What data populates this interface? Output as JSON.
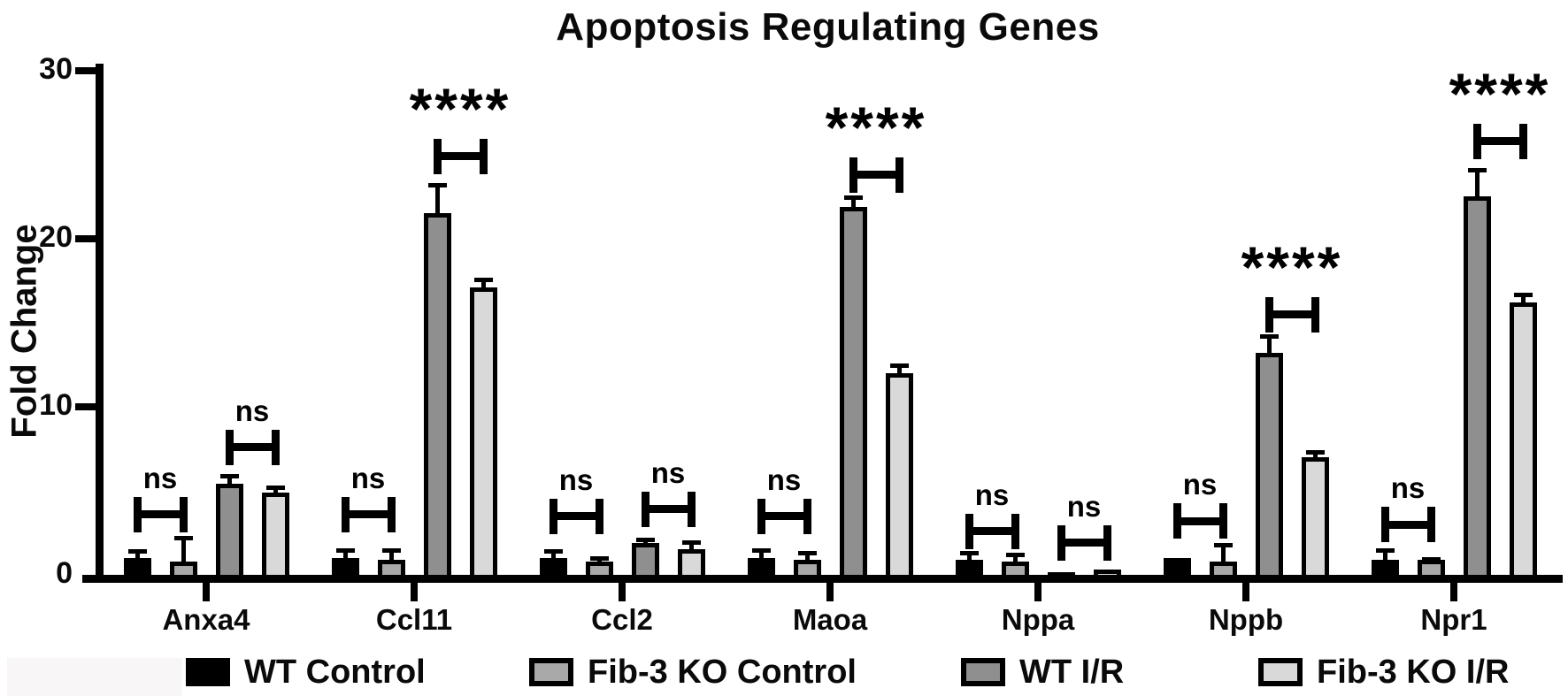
{
  "page": {
    "background": "#ffffff"
  },
  "chart_data": {
    "type": "bar",
    "title": "Apoptosis Regulating Genes",
    "ylabel": "Fold Change",
    "xlabel": "",
    "ylim": [
      0,
      30
    ],
    "yticks": [
      0,
      10,
      20,
      30
    ],
    "grid": false,
    "legend_position": "bottom",
    "bar_outline_color": "#000000",
    "categories": [
      "Anxa4",
      "Ccl11",
      "Ccl2",
      "Maoa",
      "Nppa",
      "Nppb",
      "Npr1"
    ],
    "series": [
      {
        "name": "WT Control",
        "color": "#000000",
        "values": [
          1.0,
          1.0,
          1.0,
          1.0,
          0.9,
          1.0,
          0.9
        ],
        "errors": [
          0.5,
          0.6,
          0.5,
          0.6,
          0.5,
          0.0,
          0.7
        ]
      },
      {
        "name": "Fib-3 KO Control",
        "color": "#a9a9a9",
        "values": [
          0.8,
          0.9,
          0.8,
          0.9,
          0.8,
          0.8,
          0.9
        ],
        "errors": [
          1.5,
          0.7,
          0.3,
          0.5,
          0.5,
          1.1,
          0.15
        ]
      },
      {
        "name": "WT I/R",
        "color": "#8f8f8f",
        "values": [
          5.4,
          21.5,
          1.9,
          21.9,
          0.15,
          13.2,
          22.5
        ],
        "errors": [
          0.6,
          1.8,
          0.3,
          0.7,
          0.0,
          1.1,
          1.7
        ]
      },
      {
        "name": "Fib-3 KO I/R",
        "color": "#d9d9d9",
        "values": [
          4.9,
          17.1,
          1.5,
          12.0,
          0.3,
          7.0,
          16.2
        ],
        "errors": [
          0.4,
          0.6,
          0.5,
          0.6,
          0.0,
          0.4,
          0.6
        ]
      }
    ],
    "comparisons": [
      {
        "group": 0,
        "bars": [
          0,
          1
        ],
        "label": "ns",
        "y": 3.6
      },
      {
        "group": 0,
        "bars": [
          2,
          3
        ],
        "label": "ns",
        "y": 7.6
      },
      {
        "group": 1,
        "bars": [
          0,
          1
        ],
        "label": "ns",
        "y": 3.6
      },
      {
        "group": 1,
        "bars": [
          2,
          3
        ],
        "label": "****",
        "y": 24.9
      },
      {
        "group": 2,
        "bars": [
          0,
          1
        ],
        "label": "ns",
        "y": 3.5
      },
      {
        "group": 2,
        "bars": [
          2,
          3
        ],
        "label": "ns",
        "y": 3.9
      },
      {
        "group": 3,
        "bars": [
          0,
          1
        ],
        "label": "ns",
        "y": 3.5
      },
      {
        "group": 3,
        "bars": [
          2,
          3
        ],
        "label": "****",
        "y": 23.8
      },
      {
        "group": 4,
        "bars": [
          0,
          1
        ],
        "label": "ns",
        "y": 2.6
      },
      {
        "group": 4,
        "bars": [
          2,
          3
        ],
        "label": "ns",
        "y": 1.9
      },
      {
        "group": 5,
        "bars": [
          0,
          1
        ],
        "label": "ns",
        "y": 3.2
      },
      {
        "group": 5,
        "bars": [
          2,
          3
        ],
        "label": "****",
        "y": 15.5
      },
      {
        "group": 6,
        "bars": [
          0,
          1
        ],
        "label": "ns",
        "y": 3.0
      },
      {
        "group": 6,
        "bars": [
          2,
          3
        ],
        "label": "****",
        "y": 25.8
      }
    ]
  }
}
